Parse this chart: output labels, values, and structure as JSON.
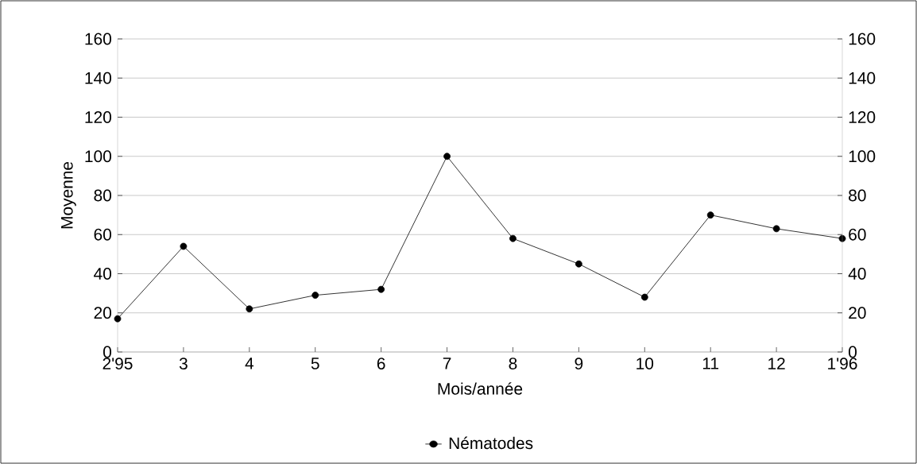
{
  "chart_data": {
    "type": "line",
    "xlabel": "Mois/année",
    "ylabel": "Moyenne",
    "categories": [
      "2'95",
      "3",
      "4",
      "5",
      "6",
      "7",
      "8",
      "9",
      "10",
      "11",
      "12",
      "1'96"
    ],
    "series": [
      {
        "name": "Nématodes",
        "color": "#000000",
        "values": [
          17,
          54,
          22,
          29,
          32,
          100,
          58,
          45,
          28,
          70,
          63,
          58
        ]
      }
    ],
    "ylim": [
      0,
      160
    ],
    "yticks": [
      0,
      20,
      40,
      60,
      80,
      100,
      120,
      140,
      160
    ],
    "y2lim": [
      0,
      160
    ],
    "y2ticks": [
      0,
      20,
      40,
      60,
      80,
      100,
      120,
      140,
      160
    ],
    "grid": "y",
    "legend": "bottom",
    "marker": "circle",
    "line_style": "solid"
  }
}
